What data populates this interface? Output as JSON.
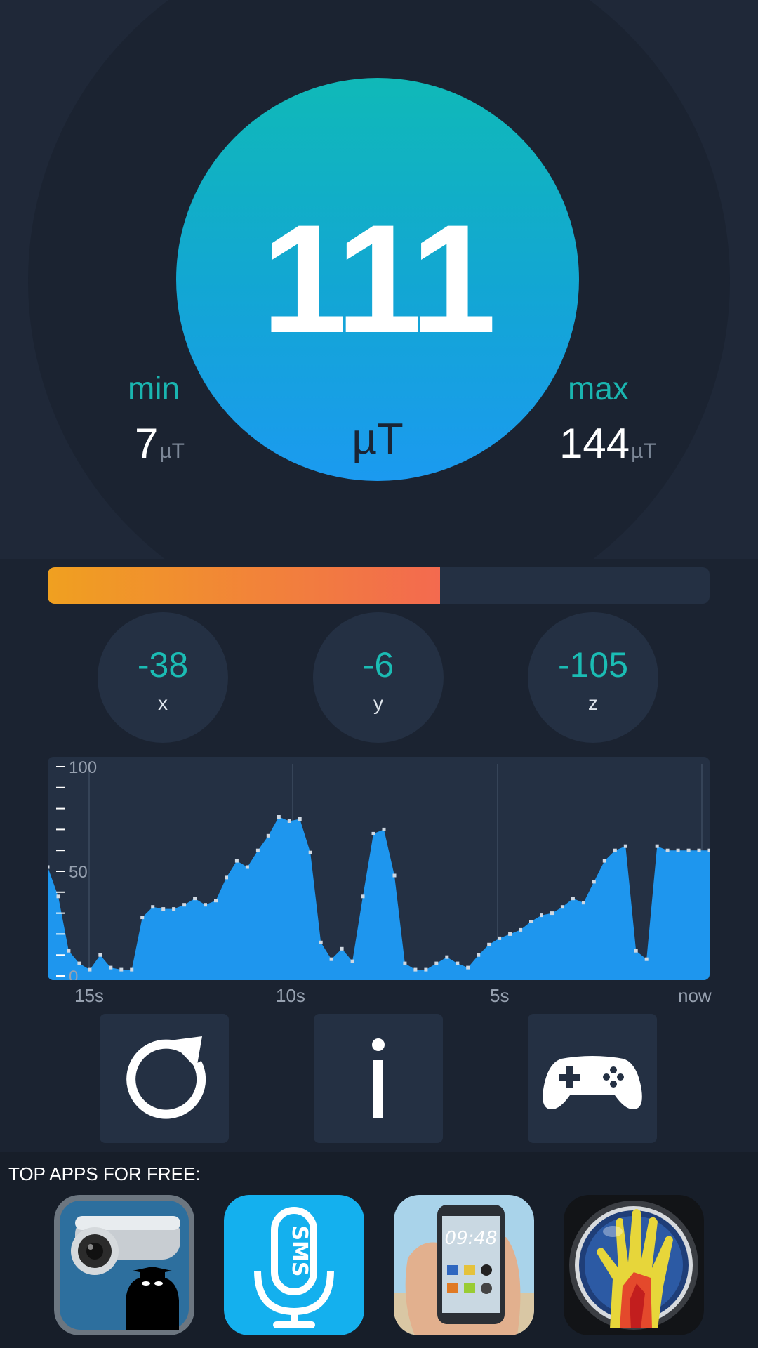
{
  "meter": {
    "value": "111",
    "unit": "µT",
    "min_label": "min",
    "min_value": "7",
    "min_unit": "µT",
    "max_label": "max",
    "max_value": "144",
    "max_unit": "µT"
  },
  "progress": {
    "fraction": 0.593
  },
  "axes": [
    {
      "value": "-38",
      "label": "x"
    },
    {
      "value": "-6",
      "label": "y"
    },
    {
      "value": "-105",
      "label": "z"
    }
  ],
  "chart_data": {
    "type": "area",
    "x_tick_labels": [
      "15s",
      "10s",
      "5s",
      "now"
    ],
    "y_tick_labels": [
      "100",
      "50",
      "0"
    ],
    "ylim": [
      0,
      100
    ],
    "color": "#1e96ee",
    "values": [
      52,
      38,
      12,
      6,
      3,
      10,
      4,
      3,
      3,
      28,
      33,
      32,
      32,
      34,
      37,
      34,
      36,
      47,
      55,
      52,
      60,
      67,
      76,
      74,
      75,
      59,
      16,
      8,
      13,
      7,
      38,
      68,
      70,
      48,
      6,
      3,
      3,
      6,
      9,
      6,
      4,
      10,
      15,
      18,
      20,
      22,
      26,
      29,
      30,
      33,
      37,
      35,
      45,
      55,
      60,
      62,
      12,
      8,
      62,
      60,
      60,
      60,
      60,
      60
    ]
  },
  "controls": [
    {
      "icon": "refresh-icon"
    },
    {
      "icon": "info-icon"
    },
    {
      "icon": "gamepad-icon"
    }
  ],
  "apps": {
    "title": "TOP APPS FOR FREE:",
    "items": [
      {
        "icon": "security-camera-app-icon"
      },
      {
        "icon": "sms-voice-app-icon",
        "badge": "SMS"
      },
      {
        "icon": "transparent-screen-app-icon",
        "time": "09:48"
      },
      {
        "icon": "thermal-hand-app-icon"
      }
    ]
  },
  "colors": {
    "accent": "#1ab5b0",
    "circle_top": "#10b9b8",
    "circle_bottom": "#1b9af0",
    "progress_start": "#f0a020",
    "progress_end": "#f36a4f",
    "background": "#1b2331"
  }
}
